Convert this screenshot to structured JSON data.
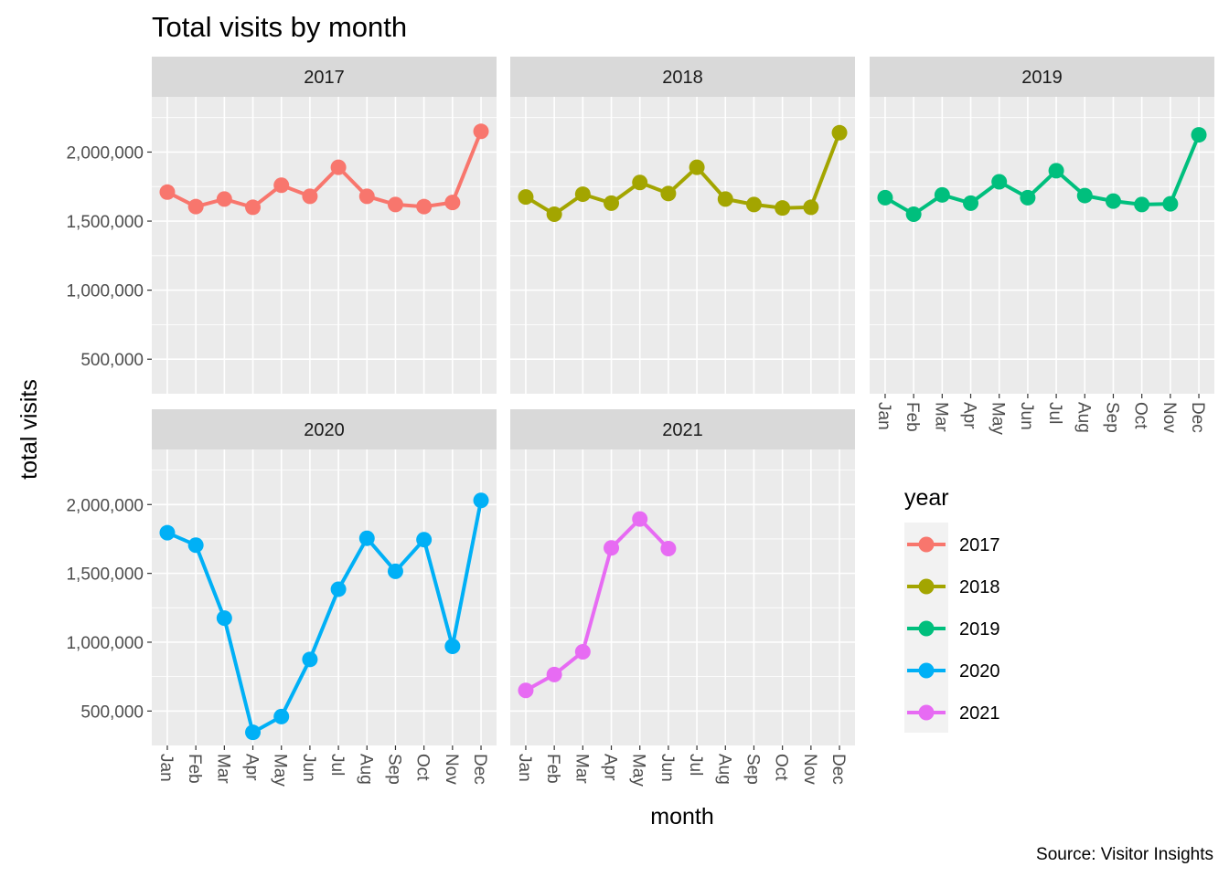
{
  "title": "Total visits by month",
  "caption": "Source: Visitor Insights",
  "chart_data": {
    "type": "line",
    "facet_by": "year",
    "xlabel": "month",
    "ylabel": "total visits",
    "ylim": [
      250000,
      2400000
    ],
    "y_ticks": [
      500000,
      1000000,
      1500000,
      2000000
    ],
    "y_tick_labels": [
      "500,000",
      "1,000,000",
      "1,500,000",
      "2,000,000"
    ],
    "categories": [
      "Jan",
      "Feb",
      "Mar",
      "Apr",
      "May",
      "Jun",
      "Jul",
      "Aug",
      "Sep",
      "Oct",
      "Nov",
      "Dec"
    ],
    "grid": true,
    "legend": {
      "title": "year",
      "position": "right"
    },
    "series": [
      {
        "name": "2017",
        "color": "#F8766D",
        "values": [
          1710000,
          1605000,
          1660000,
          1600000,
          1760000,
          1680000,
          1890000,
          1680000,
          1620000,
          1605000,
          1635000,
          2150000
        ]
      },
      {
        "name": "2018",
        "color": "#A3A500",
        "values": [
          1675000,
          1550000,
          1695000,
          1630000,
          1780000,
          1700000,
          1890000,
          1660000,
          1620000,
          1595000,
          1600000,
          2140000
        ]
      },
      {
        "name": "2019",
        "color": "#00BF7D",
        "values": [
          1670000,
          1550000,
          1690000,
          1630000,
          1785000,
          1670000,
          1865000,
          1685000,
          1645000,
          1620000,
          1625000,
          2125000
        ]
      },
      {
        "name": "2020",
        "color": "#00B0F6",
        "values": [
          1795000,
          1705000,
          1175000,
          345000,
          460000,
          875000,
          1385000,
          1755000,
          1515000,
          1745000,
          970000,
          2030000
        ]
      },
      {
        "name": "2021",
        "color": "#E76BF3",
        "values": [
          650000,
          765000,
          930000,
          1685000,
          1895000,
          1680000,
          null,
          null,
          null,
          null,
          null,
          null
        ]
      }
    ]
  }
}
